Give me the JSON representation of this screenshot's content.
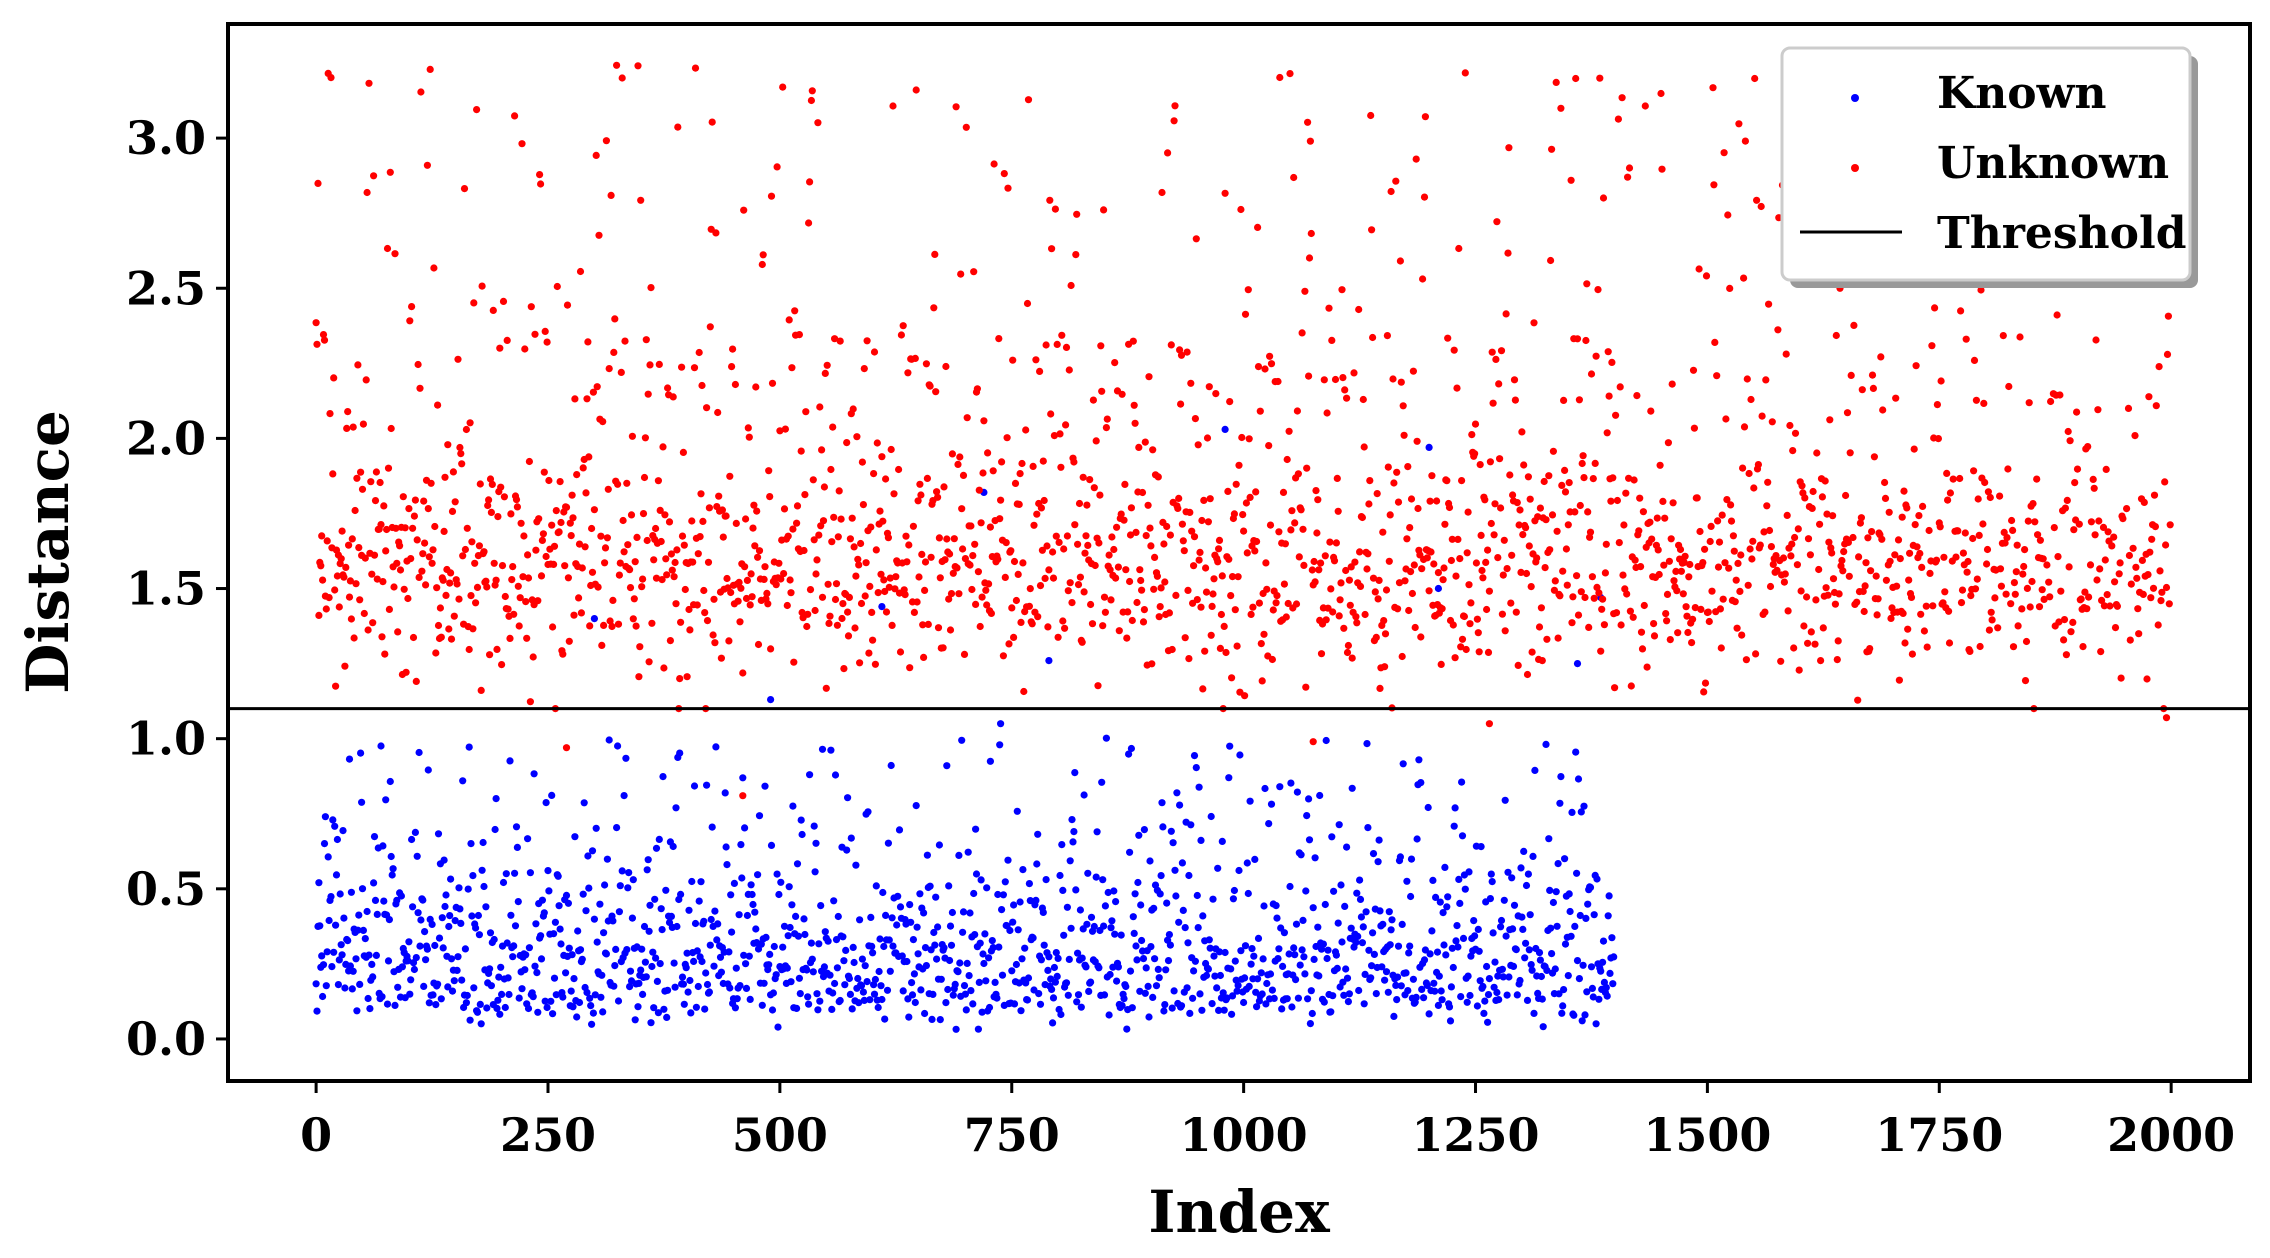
{
  "chart_data": {
    "type": "scatter",
    "title": "",
    "xlabel": "Index",
    "ylabel": "Distance",
    "xlim": [
      -95,
      2085
    ],
    "ylim": [
      -0.14,
      3.38
    ],
    "xticks": [
      "0",
      "250",
      "500",
      "750",
      "1000",
      "1250",
      "1500",
      "1750",
      "2000"
    ],
    "yticks": [
      "0.0",
      "0.5",
      "1.0",
      "1.5",
      "2.0",
      "2.5",
      "3.0"
    ],
    "grid": false,
    "legend_position": "top-right",
    "threshold": 1.1,
    "series": [
      {
        "name": "Known",
        "color": "#0000ff",
        "n_points": 1400,
        "x_range": [
          0,
          1400
        ],
        "typical_range": [
          0.02,
          0.65
        ],
        "max_value": 2.0,
        "outliers": [
          [
            490,
            1.13
          ],
          [
            720,
            1.82
          ],
          [
            790,
            1.26
          ],
          [
            980,
            2.03
          ],
          [
            1200,
            1.97
          ],
          [
            1210,
            1.5
          ],
          [
            1360,
            1.25
          ],
          [
            1385,
            1.47
          ],
          [
            610,
            1.44
          ],
          [
            300,
            1.4
          ]
        ]
      },
      {
        "name": "Unknown",
        "color": "#ff0000",
        "n_points": 2000,
        "x_range": [
          0,
          2000
        ],
        "typical_range": [
          1.2,
          2.0
        ],
        "min_value": 0.8,
        "max_value": 3.25,
        "outliers": [
          [
            270,
            0.97
          ],
          [
            460,
            0.81
          ],
          [
            1075,
            0.99
          ],
          [
            1265,
            1.05
          ],
          [
            1995,
            1.07
          ]
        ]
      },
      {
        "name": "Threshold",
        "color": "#000000",
        "type": "hline",
        "value": 1.1
      }
    ]
  }
}
